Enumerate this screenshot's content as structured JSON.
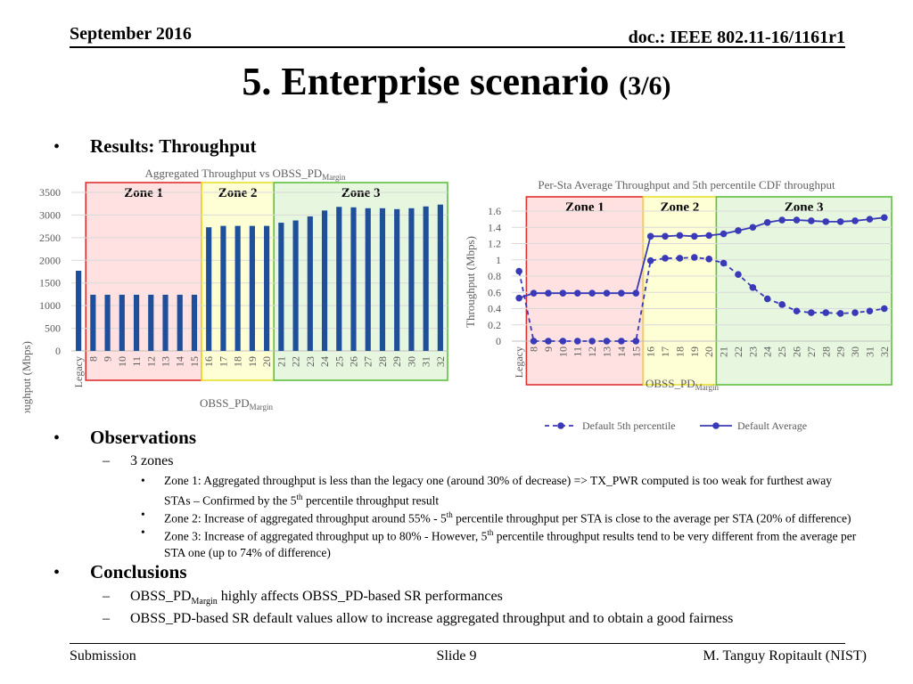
{
  "header": {
    "date": "September 2016",
    "doc": "doc.: IEEE 802.11-16/1161r1"
  },
  "title": {
    "main": "5. Enterprise scenario",
    "sub": "(3/6)"
  },
  "bullets": {
    "results": "Results: Throughput",
    "observations": "Observations",
    "zones_count": "3 zones",
    "zone1_a": "Zone 1: Aggregated throughput is less than the legacy one (around 30% of decrease) => TX_PWR computed is too weak for furthest away",
    "zone1_b1": "STAs – Confirmed by the 5",
    "zone1_b2": " percentile throughput result",
    "zone2_1": "Zone 2: Increase of aggregated throughput around 55% - 5",
    "zone2_2": " percentile throughput per STA is close to the average per STA (20% of difference)",
    "zone3_a1": "Zone 3: Increase of aggregated throughput up to 80% - However, 5",
    "zone3_a2": " percentile throughput results tend to be very different from the average per",
    "zone3_b": "STA one (up to 74% of difference)",
    "th": "th",
    "conclusions": "Conclusions",
    "concl1_a": "OBSS_PD",
    "concl1_sub": "Margin",
    "concl1_b": " highly affects OBSS_PD-based SR performances",
    "concl2": "OBSS_PD-based SR default values allow to increase aggregated throughput and to obtain a good fairness"
  },
  "footer": {
    "left": "Submission",
    "center": "Slide 9",
    "right": "M. Tanguy Ropitault (NIST)"
  },
  "colors": {
    "bar": "#1f4e9a",
    "line": "#3a3ab8",
    "zone1": "#e03030",
    "zone2": "#e8e030",
    "zone3": "#60c040"
  },
  "chart_data": [
    {
      "type": "bar",
      "title": "Aggregated Throughput vs OBSS_PD",
      "title_sub": "Margin",
      "xlabel": "OBSS_PD",
      "xlabel_sub": "Margin",
      "ylabel": "Throughput (Mbps)",
      "ylim": [
        0,
        3500
      ],
      "yticks": [
        "0",
        "500",
        "1000",
        "1500",
        "2000",
        "2500",
        "3000",
        "3500"
      ],
      "categories": [
        "Legacy",
        "8",
        "9",
        "10",
        "11",
        "12",
        "13",
        "14",
        "15",
        "16",
        "17",
        "18",
        "19",
        "20",
        "21",
        "22",
        "23",
        "24",
        "25",
        "26",
        "27",
        "28",
        "29",
        "30",
        "31",
        "32"
      ],
      "values": [
        1770,
        1240,
        1240,
        1240,
        1240,
        1240,
        1240,
        1240,
        1240,
        2730,
        2760,
        2760,
        2760,
        2760,
        2830,
        2880,
        2970,
        3100,
        3180,
        3170,
        3150,
        3150,
        3130,
        3150,
        3190,
        3230
      ],
      "zones": [
        {
          "label": "Zone 1",
          "from": "8",
          "to": "15"
        },
        {
          "label": "Zone 2",
          "from": "16",
          "to": "20"
        },
        {
          "label": "Zone 3",
          "from": "21",
          "to": "32"
        }
      ]
    },
    {
      "type": "line",
      "title": "Per-Sta Average Throughput and 5th percentile CDF throughput",
      "xlabel": "OBSS_PD",
      "xlabel_sub": "Margin",
      "ylabel": "Throughput (Mbps)",
      "ylim": [
        0,
        1.6
      ],
      "yticks": [
        "0",
        "0.2",
        "0.4",
        "0.6",
        "0.8",
        "1",
        "1.2",
        "1.4",
        "1.6"
      ],
      "categories": [
        "Legacy",
        "8",
        "9",
        "10",
        "11",
        "12",
        "13",
        "14",
        "15",
        "16",
        "17",
        "18",
        "19",
        "20",
        "21",
        "22",
        "23",
        "24",
        "25",
        "26",
        "27",
        "28",
        "29",
        "30",
        "31",
        "32"
      ],
      "legend": "bottom",
      "series": [
        {
          "name": "Default 5th percentile",
          "dashed": true,
          "values": [
            0.86,
            0,
            0,
            0,
            0,
            0,
            0,
            0,
            0,
            0.99,
            1.02,
            1.02,
            1.03,
            1.01,
            0.96,
            0.82,
            0.66,
            0.52,
            0.45,
            0.37,
            0.35,
            0.35,
            0.34,
            0.35,
            0.37,
            0.4
          ]
        },
        {
          "name": "Default Average",
          "dashed": false,
          "values": [
            0.53,
            0.59,
            0.59,
            0.59,
            0.59,
            0.59,
            0.59,
            0.59,
            0.59,
            1.29,
            1.29,
            1.3,
            1.29,
            1.3,
            1.32,
            1.36,
            1.4,
            1.46,
            1.49,
            1.49,
            1.48,
            1.47,
            1.47,
            1.48,
            1.5,
            1.52
          ]
        }
      ],
      "zones": [
        {
          "label": "Zone 1",
          "from": "8",
          "to": "15"
        },
        {
          "label": "Zone 2",
          "from": "16",
          "to": "20"
        },
        {
          "label": "Zone 3",
          "from": "21",
          "to": "32"
        }
      ]
    }
  ]
}
